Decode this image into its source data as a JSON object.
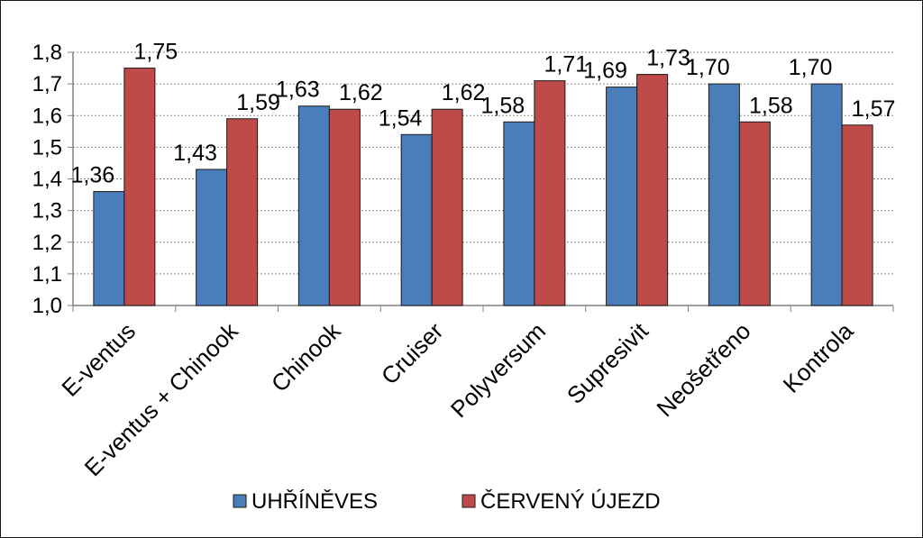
{
  "chart_data": {
    "type": "bar",
    "categories": [
      "E-ventus",
      "E-ventus + Chinook",
      "Chinook",
      "Cruiser",
      "Polyversum",
      "Supresivit",
      "Neošetřeno",
      "Kontrola"
    ],
    "series": [
      {
        "name": "UHŘÍNĚVES",
        "color": "#4a7ebb",
        "values": [
          1.36,
          1.43,
          1.63,
          1.54,
          1.58,
          1.69,
          1.7,
          1.7
        ],
        "labels": [
          "1,36",
          "1,43",
          "1,63",
          "1,54",
          "1,58",
          "1,69",
          "1,70",
          "1,70"
        ]
      },
      {
        "name": "ČERVENÝ ÚJEZD",
        "color": "#be4b48",
        "values": [
          1.75,
          1.59,
          1.62,
          1.62,
          1.71,
          1.73,
          1.58,
          1.57
        ],
        "labels": [
          "1,75",
          "1,59",
          "1,62",
          "1,62",
          "1,71",
          "1,73",
          "1,58",
          "1,57"
        ]
      }
    ],
    "ylim": [
      1.0,
      1.8
    ],
    "yticks": [
      1.0,
      1.1,
      1.2,
      1.3,
      1.4,
      1.5,
      1.6,
      1.7,
      1.8
    ],
    "ytick_labels": [
      "1,0",
      "1,1",
      "1,2",
      "1,3",
      "1,4",
      "1,5",
      "1,6",
      "1,7",
      "1,8"
    ],
    "grid": true,
    "legend_position": "bottom",
    "title": "",
    "xlabel": "",
    "ylabel": ""
  }
}
